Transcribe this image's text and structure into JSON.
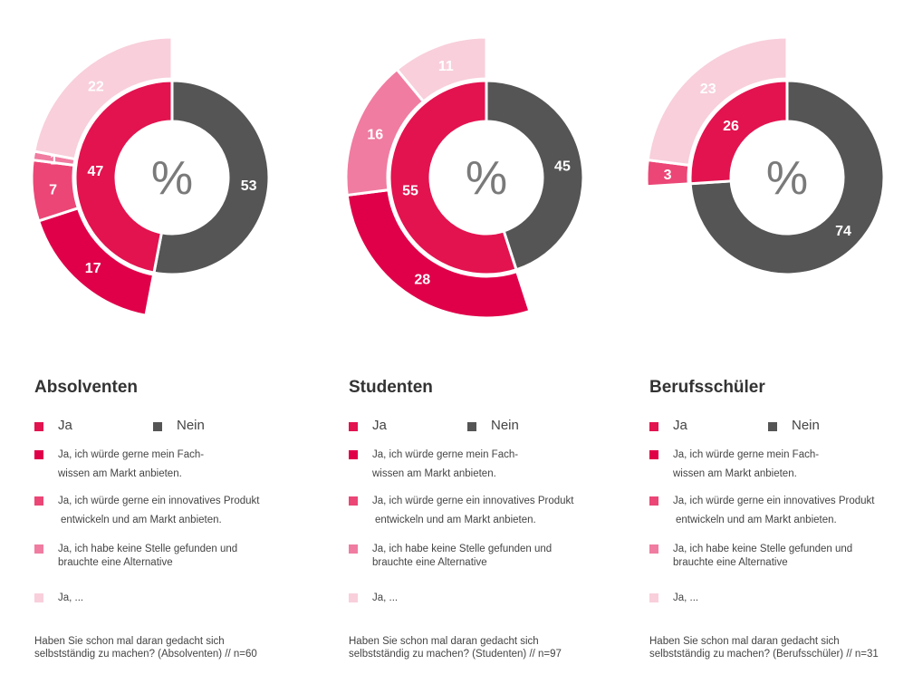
{
  "center_symbol": "%",
  "colors": {
    "nein": "#555556",
    "ja": "#e2134f",
    "fachwissen": "#e0004a",
    "produkt": "#eb4676",
    "keine_stelle": "#f07ca1",
    "ja_other": "#f8cfdb"
  },
  "legend": {
    "ja": "Ja",
    "nein": "Nein",
    "fachwissen_l1": "Ja, ich würde gerne mein Fach-",
    "fachwissen_l2": "wissen am Markt anbieten.",
    "produkt_l1": "Ja, ich würde gerne ein innovatives Produkt",
    "produkt_l2": "entwickeln und am Markt anbieten.",
    "stelle_l1": "Ja, ich habe keine Stelle gefunden und",
    "stelle_l2": "brauchte eine Alternative",
    "other": "Ja, ..."
  },
  "panels": [
    {
      "title": "Absolventen",
      "footnote_l1": "Haben Sie schon mal daran gedacht sich",
      "footnote_l2": "selbstständig zu machen? (Absolventen) // n=60"
    },
    {
      "title": "Studenten",
      "footnote_l1": "Haben Sie schon mal daran gedacht sich",
      "footnote_l2": "selbstständig zu machen? (Studenten) // n=97"
    },
    {
      "title": "Berufsschüler",
      "footnote_l1": "Haben Sie schon mal daran gedacht sich",
      "footnote_l2": "selbstständig zu machen? (Berufsschüler) // n=31"
    }
  ],
  "chart_data": [
    {
      "type": "pie",
      "title": "Absolventen",
      "inner": [
        {
          "name": "Ja",
          "value": 47
        },
        {
          "name": "Nein",
          "value": 53
        }
      ],
      "outer": [
        {
          "name": "Ja, ich würde gerne mein Fachwissen am Markt anbieten.",
          "value": 17
        },
        {
          "name": "Ja, ich würde gerne ein innovatives Produkt entwickeln und am Markt anbieten.",
          "value": 7
        },
        {
          "name": "Ja, ich habe keine Stelle gefunden und brauchte eine Alternative",
          "value": 1
        },
        {
          "name": "Ja, ...",
          "value": 22
        }
      ]
    },
    {
      "type": "pie",
      "title": "Studenten",
      "inner": [
        {
          "name": "Ja",
          "value": 55
        },
        {
          "name": "Nein",
          "value": 45
        }
      ],
      "outer": [
        {
          "name": "Ja, ich würde gerne mein Fachwissen am Markt anbieten.",
          "value": 28
        },
        {
          "name": "Ja, ich würde gerne ein innovatives Produkt entwickeln und am Markt anbieten.",
          "value": 0
        },
        {
          "name": "Ja, ich habe keine Stelle gefunden und brauchte eine Alternative",
          "value": 16
        },
        {
          "name": "Ja, ...",
          "value": 11
        }
      ]
    },
    {
      "type": "pie",
      "title": "Berufsschüler",
      "inner": [
        {
          "name": "Ja",
          "value": 26
        },
        {
          "name": "Nein",
          "value": 74
        }
      ],
      "outer": [
        {
          "name": "Ja, ich würde gerne mein Fachwissen am Markt anbieten.",
          "value": 0
        },
        {
          "name": "Ja, ich würde gerne ein innovatives Produkt entwickeln und am Markt anbieten.",
          "value": 3
        },
        {
          "name": "Ja, ich habe keine Stelle gefunden und brauchte eine Alternative",
          "value": 0
        },
        {
          "name": "Ja, ...",
          "value": 23
        }
      ]
    }
  ]
}
